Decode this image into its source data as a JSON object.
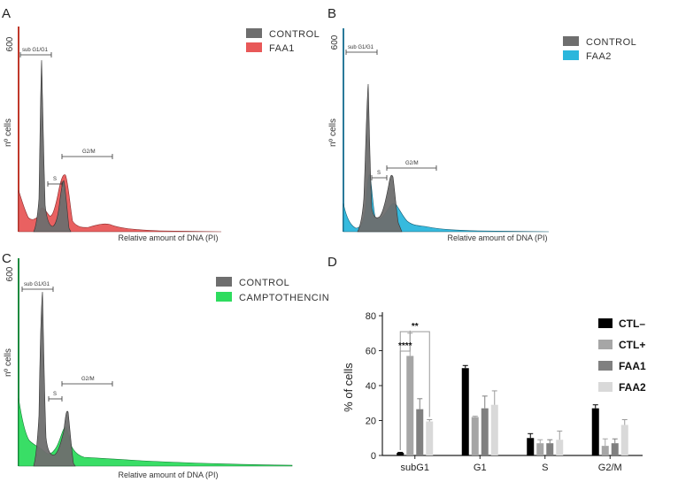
{
  "chart_data": [
    {
      "type": "area",
      "panel": "A",
      "y_tick_label": "600",
      "ylabel": "nº cells",
      "xlabel": "Relative amount of DNA (PI)",
      "legend": [
        "CONTROL",
        "FAA1"
      ],
      "colors": {
        "control": "#6e6e6e",
        "treated": "#e85858",
        "axis": "#c0392b"
      },
      "gates": {
        "subG1": "sub G1/G1",
        "s": "S",
        "g2m": "G2/M"
      },
      "control_peaks": [
        0.95,
        0.22
      ],
      "treated_peaks": [
        0.22,
        0.45
      ]
    },
    {
      "type": "area",
      "panel": "B",
      "y_tick_label": "600",
      "ylabel": "nº cells",
      "xlabel": "Relative amount of DNA (PI)",
      "legend": [
        "CONTROL",
        "FAA2"
      ],
      "colors": {
        "control": "#6e6e6e",
        "treated": "#2bb6dc",
        "axis": "#2a7a9a"
      },
      "gates": {
        "subG1": "sub G1/G1",
        "s": "S",
        "g2m": "G2/M"
      },
      "control_peaks": [
        0.85,
        0.33
      ],
      "treated_peaks": [
        0.25,
        0.2
      ]
    },
    {
      "type": "area",
      "panel": "C",
      "y_tick_label": "600",
      "ylabel": "nº cells",
      "xlabel": "Relative amount of DNA (PI)",
      "legend": [
        "CONTROL",
        "CAMPTOTHENCIN"
      ],
      "colors": {
        "control": "#6e6e6e",
        "treated": "#2edc5e",
        "axis": "#1e8a40"
      },
      "gates": {
        "subG1": "sub G1/G1",
        "s": "S",
        "g2m": "G2/M"
      },
      "control_peaks": [
        0.95,
        0.3
      ],
      "treated_peaks": [
        0.3,
        0.28
      ]
    },
    {
      "type": "bar",
      "panel": "D",
      "title": "",
      "categories": [
        "subG1",
        "G1",
        "S",
        "G2/M"
      ],
      "ylabel": "% of cells",
      "ylim": [
        0,
        80
      ],
      "yticks": [
        0,
        20,
        40,
        60,
        80
      ],
      "series": [
        {
          "name": "CTL–",
          "color": "#000000",
          "values": [
            1.5,
            50,
            10,
            27
          ],
          "errors": [
            0.3,
            1.5,
            2.5,
            2
          ]
        },
        {
          "name": "CTL+",
          "color": "#a6a6a6",
          "values": [
            57,
            22,
            7,
            5.5
          ],
          "errors": [
            13,
            0.5,
            2,
            4
          ]
        },
        {
          "name": "FAA1",
          "color": "#808080",
          "values": [
            26.5,
            27,
            7,
            7
          ],
          "errors": [
            6,
            7,
            2,
            2.5
          ]
        },
        {
          "name": "FAA2",
          "color": "#d9d9d9",
          "values": [
            19.5,
            29,
            9,
            17.5
          ],
          "errors": [
            1,
            8,
            5,
            3
          ]
        }
      ],
      "significance": [
        {
          "label": "**",
          "from": "CTL–",
          "to": "FAA2"
        },
        {
          "label": "****",
          "from": "CTL–",
          "to": "CTL+"
        }
      ]
    }
  ]
}
